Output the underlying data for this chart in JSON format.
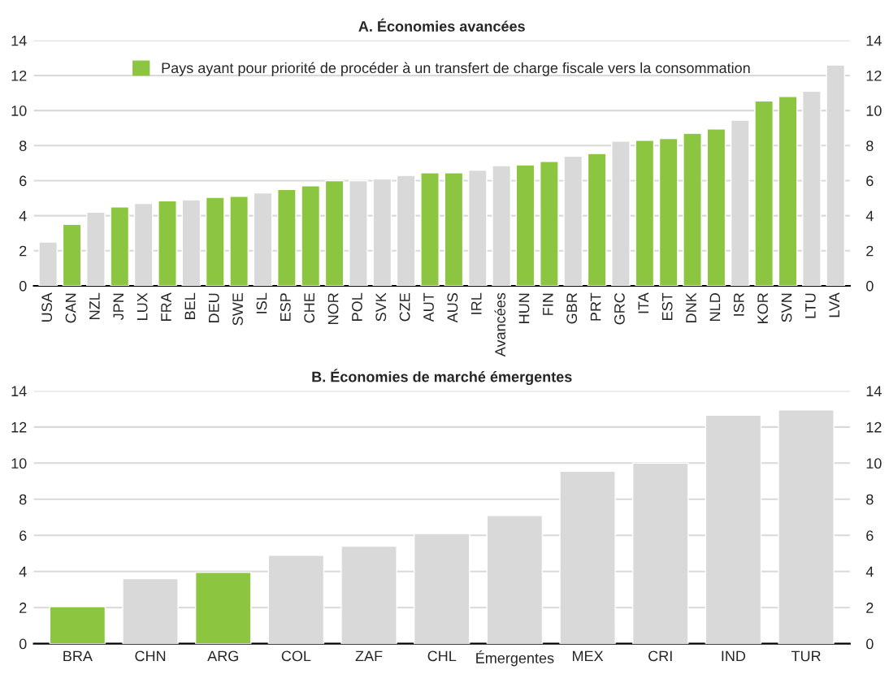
{
  "chart_data": [
    {
      "type": "bar",
      "title": "A. Économies avancées",
      "categories": [
        "USA",
        "CAN",
        "NZL",
        "JPN",
        "LUX",
        "FRA",
        "BEL",
        "DEU",
        "SWE",
        "ISL",
        "ESP",
        "CHE",
        "NOR",
        "POL",
        "SVK",
        "CZE",
        "AUT",
        "AUS",
        "IRL",
        "Avancées",
        "HUN",
        "FIN",
        "GBR",
        "PRT",
        "GRC",
        "ITA",
        "EST",
        "DNK",
        "NLD",
        "ISR",
        "KOR",
        "SVN",
        "LTU",
        "LVA"
      ],
      "series": [
        {
          "name": "Pays ayant pour priorité de procéder à un transfert de charge fiscale vers la consommation",
          "color": "#8cc641",
          "values": [
            null,
            3.5,
            null,
            4.5,
            null,
            4.85,
            null,
            5.05,
            5.1,
            null,
            5.5,
            5.7,
            6.0,
            null,
            null,
            null,
            6.45,
            6.45,
            null,
            null,
            6.9,
            7.1,
            null,
            7.55,
            null,
            8.3,
            8.4,
            8.7,
            8.95,
            null,
            10.55,
            10.8,
            null,
            null
          ]
        },
        {
          "color": "#d9d9d9",
          "values": [
            2.5,
            null,
            4.2,
            null,
            4.7,
            null,
            4.9,
            null,
            null,
            5.3,
            null,
            null,
            null,
            6.0,
            6.1,
            6.3,
            null,
            null,
            6.6,
            6.85,
            null,
            null,
            7.4,
            null,
            8.25,
            null,
            null,
            null,
            null,
            9.45,
            null,
            null,
            11.1,
            12.6
          ]
        }
      ],
      "ylim": [
        0,
        14
      ],
      "yticks": [
        0,
        2,
        4,
        6,
        8,
        10,
        12,
        14
      ],
      "y2lim": [
        0,
        14
      ],
      "y2ticks": [
        0,
        2,
        4,
        6,
        8,
        10,
        12,
        14
      ],
      "grid": "y",
      "legend": "top"
    },
    {
      "type": "bar",
      "title": "B. Économies de marché émergentes",
      "categories": [
        "BRA",
        "CHN",
        "ARG",
        "COL",
        "ZAF",
        "CHL",
        "Émergentes",
        "MEX",
        "CRI",
        "IND",
        "TUR"
      ],
      "series": [
        {
          "color": "#8cc641",
          "values": [
            2.05,
            null,
            3.95,
            null,
            null,
            null,
            null,
            null,
            null,
            null,
            null
          ]
        },
        {
          "color": "#d9d9d9",
          "values": [
            null,
            3.6,
            null,
            4.9,
            5.4,
            6.1,
            7.1,
            9.55,
            10.0,
            12.65,
            12.95
          ]
        }
      ],
      "ylim": [
        0,
        14
      ],
      "yticks": [
        0,
        2,
        4,
        6,
        8,
        10,
        12,
        14
      ],
      "y2lim": [
        0,
        14
      ],
      "y2ticks": [
        0,
        2,
        4,
        6,
        8,
        10,
        12,
        14
      ],
      "grid": "y"
    }
  ]
}
